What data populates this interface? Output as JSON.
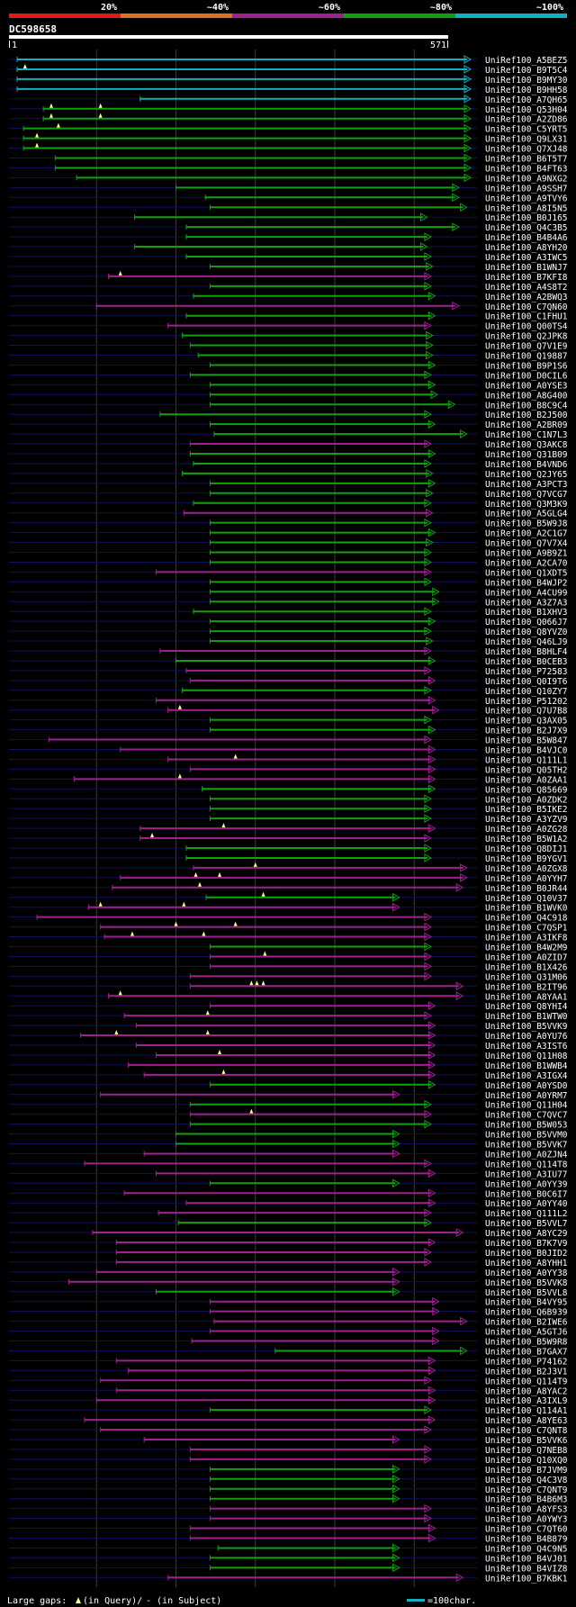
{
  "chart_data": {
    "type": "alignment-overview",
    "title": "DC598658",
    "query_length": 571,
    "axis_start_label": "1",
    "axis_end_label": "571",
    "identity_legend": [
      {
        "label": "20%",
        "color": "#e0191b"
      },
      {
        "label": "~40%",
        "color": "#e07020"
      },
      {
        "label": "~60%",
        "color": "#a02090"
      },
      {
        "label": "~80%",
        "color": "#10a010"
      },
      {
        "label": "~100%",
        "color": "#10b0c0"
      }
    ],
    "footer": {
      "gaps_label": "Large gaps:",
      "query_gap_note": "(in Query)/",
      "subject_gap_note": "- (in Subject)",
      "scale_note": "=100char."
    },
    "hits": [
      [
        "UniRef100_A5BEZ5",
        "c",
        0,
        570,
        []
      ],
      [
        "UniRef100_B9T5C4",
        "c",
        0,
        570,
        [
          10
        ]
      ],
      [
        "UniRef100_B9MY30",
        "c",
        0,
        570,
        []
      ],
      [
        "UniRef100_B9HH58",
        "c",
        0,
        570,
        []
      ],
      [
        "UniRef100_A7QH65",
        "c",
        155,
        570,
        []
      ],
      [
        "UniRef100_Q53H04",
        "g",
        33,
        570,
        [
          43,
          105
        ]
      ],
      [
        "UniRef100_A2ZD86",
        "g",
        33,
        570,
        [
          43,
          105
        ]
      ],
      [
        "UniRef100_C5YRT5",
        "g",
        8,
        570,
        [
          52
        ]
      ],
      [
        "UniRef100_Q9LX31",
        "g",
        8,
        570,
        [
          25
        ]
      ],
      [
        "UniRef100_Q7XJ48",
        "g",
        8,
        570,
        [
          25
        ]
      ],
      [
        "UniRef100_B6T5T7",
        "g",
        48,
        570,
        []
      ],
      [
        "UniRef100_B4FT63",
        "g",
        48,
        570,
        []
      ],
      [
        "UniRef100_A9NXG2",
        "g",
        75,
        570,
        []
      ],
      [
        "UniRef100_A9SSH7",
        "g",
        200,
        555,
        []
      ],
      [
        "UniRef100_A9TVY6",
        "g",
        237,
        555,
        []
      ],
      [
        "UniRef100_A8I5N5",
        "g",
        243,
        565,
        []
      ],
      [
        "UniRef100_B0J165",
        "g",
        148,
        515,
        []
      ],
      [
        "UniRef100_Q4C3B5",
        "g",
        213,
        555,
        []
      ],
      [
        "UniRef100_B4B4A6",
        "g",
        213,
        520,
        []
      ],
      [
        "UniRef100_A8YH20",
        "g",
        148,
        515,
        []
      ],
      [
        "UniRef100_A3IWC5",
        "g",
        213,
        520,
        []
      ],
      [
        "UniRef100_B1WNJ7",
        "g",
        243,
        522,
        []
      ],
      [
        "UniRef100_B7KFI8",
        "m",
        115,
        520,
        [
          130
        ]
      ],
      [
        "UniRef100_A4S8T2",
        "g",
        243,
        520,
        []
      ],
      [
        "UniRef100_A2BWQ3",
        "g",
        222,
        525,
        []
      ],
      [
        "UniRef100_C7QN60",
        "m",
        100,
        555,
        []
      ],
      [
        "UniRef100_C1FHU1",
        "g",
        213,
        525,
        []
      ],
      [
        "UniRef100_Q00TS4",
        "m",
        190,
        520,
        []
      ],
      [
        "UniRef100_Q2JPK8",
        "g",
        208,
        522,
        []
      ],
      [
        "UniRef100_Q7V1E9",
        "g",
        218,
        522,
        []
      ],
      [
        "UniRef100_Q19887",
        "g",
        228,
        522,
        []
      ],
      [
        "UniRef100_B9P1S6",
        "g",
        243,
        525,
        []
      ],
      [
        "UniRef100_D0CIL6",
        "g",
        218,
        520,
        []
      ],
      [
        "UniRef100_A0YSE3",
        "g",
        243,
        525,
        []
      ],
      [
        "UniRef100_A8G400",
        "g",
        243,
        528,
        []
      ],
      [
        "UniRef100_B8C9C4",
        "g",
        243,
        550,
        []
      ],
      [
        "UniRef100_B2J500",
        "g",
        180,
        520,
        []
      ],
      [
        "UniRef100_A2BR09",
        "g",
        243,
        525,
        []
      ],
      [
        "UniRef100_C1N7L3",
        "g",
        248,
        565,
        []
      ],
      [
        "UniRef100_Q3AKC8",
        "m",
        218,
        520,
        []
      ],
      [
        "UniRef100_Q31B09",
        "g",
        218,
        525,
        []
      ],
      [
        "UniRef100_B4VND6",
        "g",
        222,
        520,
        []
      ],
      [
        "UniRef100_Q2JY65",
        "g",
        208,
        522,
        []
      ],
      [
        "UniRef100_A3PCT3",
        "g",
        243,
        525,
        []
      ],
      [
        "UniRef100_Q7VCG7",
        "g",
        243,
        522,
        []
      ],
      [
        "UniRef100_Q3M3K9",
        "g",
        222,
        520,
        []
      ],
      [
        "UniRef100_A5GLG4",
        "m",
        210,
        522,
        []
      ],
      [
        "UniRef100_B5W9J8",
        "g",
        243,
        520,
        []
      ],
      [
        "UniRef100_A2C1G7",
        "g",
        243,
        525,
        []
      ],
      [
        "UniRef100_Q7V7X4",
        "g",
        243,
        522,
        []
      ],
      [
        "UniRef100_A9B9Z1",
        "g",
        243,
        520,
        []
      ],
      [
        "UniRef100_A2CA70",
        "g",
        243,
        520,
        []
      ],
      [
        "UniRef100_Q1XDT5",
        "m",
        175,
        520,
        []
      ],
      [
        "UniRef100_B4WJP2",
        "g",
        243,
        520,
        []
      ],
      [
        "UniRef100_A4CU99",
        "g",
        243,
        530,
        []
      ],
      [
        "UniRef100_A3Z7A3",
        "g",
        243,
        530,
        []
      ],
      [
        "UniRef100_B1XHV3",
        "g",
        222,
        520,
        []
      ],
      [
        "UniRef100_Q066J7",
        "g",
        243,
        525,
        []
      ],
      [
        "UniRef100_Q8YVZ0",
        "g",
        243,
        520,
        []
      ],
      [
        "UniRef100_Q46LJ9",
        "g",
        243,
        522,
        []
      ],
      [
        "UniRef100_B8HLF4",
        "m",
        180,
        520,
        []
      ],
      [
        "UniRef100_B0CEB3",
        "g",
        200,
        525,
        []
      ],
      [
        "UniRef100_P72583",
        "m",
        213,
        520,
        []
      ],
      [
        "UniRef100_Q0I9T6",
        "m",
        218,
        525,
        []
      ],
      [
        "UniRef100_Q10ZY7",
        "g",
        208,
        520,
        []
      ],
      [
        "UniRef100_P51202",
        "m",
        175,
        525,
        []
      ],
      [
        "UniRef100_Q7U7B8",
        "m",
        190,
        530,
        [
          205
        ]
      ],
      [
        "UniRef100_Q3AX05",
        "g",
        243,
        520,
        []
      ],
      [
        "UniRef100_B2J7X9",
        "g",
        243,
        525,
        []
      ],
      [
        "UniRef100_B5W847",
        "m",
        40,
        520,
        []
      ],
      [
        "UniRef100_B4VJC0",
        "m",
        130,
        525,
        []
      ],
      [
        "UniRef100_Q111L1",
        "m",
        190,
        525,
        [
          275
        ]
      ],
      [
        "UniRef100_Q05TH2",
        "m",
        218,
        525,
        []
      ],
      [
        "UniRef100_A0ZAA1",
        "m",
        72,
        525,
        [
          205
        ]
      ],
      [
        "UniRef100_Q85669",
        "g",
        233,
        525,
        []
      ],
      [
        "UniRef100_A0ZDK2",
        "g",
        243,
        520,
        []
      ],
      [
        "UniRef100_B5IKE2",
        "g",
        243,
        520,
        []
      ],
      [
        "UniRef100_A3YZV9",
        "g",
        243,
        520,
        []
      ],
      [
        "UniRef100_A0ZG28",
        "m",
        155,
        525,
        [
          260
        ]
      ],
      [
        "UniRef100_B5W1A2",
        "m",
        155,
        520,
        [
          170
        ]
      ],
      [
        "UniRef100_Q8DIJ1",
        "g",
        213,
        520,
        []
      ],
      [
        "UniRef100_B9YGV1",
        "g",
        213,
        520,
        []
      ],
      [
        "UniRef100_A0ZGX8",
        "m",
        222,
        565,
        [
          300
        ]
      ],
      [
        "UniRef100_A0YYH7",
        "m",
        130,
        565,
        [
          225,
          255
        ]
      ],
      [
        "UniRef100_B0JR44",
        "m",
        120,
        560,
        [
          230
        ]
      ],
      [
        "UniRef100_Q10V37",
        "g",
        238,
        480,
        [
          310
        ]
      ],
      [
        "UniRef100_B1WVK0",
        "m",
        90,
        480,
        [
          105,
          210
        ]
      ],
      [
        "UniRef100_Q4C918",
        "m",
        25,
        520,
        []
      ],
      [
        "UniRef100_C7QSP1",
        "m",
        105,
        520,
        [
          200,
          275
        ]
      ],
      [
        "UniRef100_A3IKF8",
        "m",
        110,
        520,
        [
          145,
          235
        ]
      ],
      [
        "UniRef100_B4W2M9",
        "g",
        243,
        520,
        []
      ],
      [
        "UniRef100_A0ZID7",
        "m",
        243,
        520,
        [
          312
        ]
      ],
      [
        "UniRef100_B1X426",
        "m",
        243,
        520,
        []
      ],
      [
        "UniRef100_Q31M06",
        "m",
        218,
        520,
        []
      ],
      [
        "UniRef100_B2IT96",
        "m",
        218,
        560,
        [
          295,
          302,
          310
        ]
      ],
      [
        "UniRef100_A8YAA1",
        "m",
        115,
        560,
        [
          130
        ]
      ],
      [
        "UniRef100_Q8YHI4",
        "m",
        243,
        525,
        []
      ],
      [
        "UniRef100_B1WTW0",
        "m",
        135,
        520,
        [
          240
        ]
      ],
      [
        "UniRef100_B5VVK9",
        "m",
        150,
        525,
        []
      ],
      [
        "UniRef100_A0YU76",
        "m",
        80,
        525,
        [
          125,
          240
        ]
      ],
      [
        "UniRef100_A3IST6",
        "m",
        150,
        525,
        []
      ],
      [
        "UniRef100_Q11H08",
        "m",
        175,
        525,
        [
          255
        ]
      ],
      [
        "UniRef100_B1WWB4",
        "m",
        140,
        525,
        []
      ],
      [
        "UniRef100_A3IGX4",
        "m",
        160,
        525,
        [
          260
        ]
      ],
      [
        "UniRef100_A0YSD0",
        "g",
        243,
        525,
        []
      ],
      [
        "UniRef100_A0YRM7",
        "m",
        105,
        480,
        []
      ],
      [
        "UniRef100_Q11H04",
        "g",
        218,
        520,
        []
      ],
      [
        "UniRef100_C7QVC7",
        "m",
        218,
        520,
        [
          295
        ]
      ],
      [
        "UniRef100_B5W053",
        "g",
        218,
        520,
        []
      ],
      [
        "UniRef100_B5VVM0",
        "g",
        200,
        480,
        []
      ],
      [
        "UniRef100_B5VVK7",
        "g",
        200,
        480,
        []
      ],
      [
        "UniRef100_A0ZJN4",
        "m",
        160,
        480,
        []
      ],
      [
        "UniRef100_Q114T8",
        "m",
        85,
        520,
        []
      ],
      [
        "UniRef100_A3IU77",
        "m",
        175,
        525,
        []
      ],
      [
        "UniRef100_A0YY39",
        "g",
        243,
        480,
        []
      ],
      [
        "UniRef100_B0C6I7",
        "m",
        135,
        525,
        []
      ],
      [
        "UniRef100_A0YY40",
        "m",
        213,
        525,
        []
      ],
      [
        "UniRef100_Q111L2",
        "m",
        178,
        520,
        []
      ],
      [
        "UniRef100_B5VVL7",
        "g",
        203,
        520,
        []
      ],
      [
        "UniRef100_A8YC29",
        "m",
        95,
        560,
        []
      ],
      [
        "UniRef100_B7K7V9",
        "m",
        125,
        525,
        []
      ],
      [
        "UniRef100_B0JID2",
        "m",
        125,
        520,
        []
      ],
      [
        "UniRef100_A8YHH1",
        "m",
        125,
        520,
        []
      ],
      [
        "UniRef100_A0YY38",
        "m",
        100,
        480,
        []
      ],
      [
        "UniRef100_B5VVK8",
        "m",
        65,
        480,
        []
      ],
      [
        "UniRef100_B5VVL8",
        "g",
        175,
        480,
        []
      ],
      [
        "UniRef100_B4VY95",
        "m",
        243,
        530,
        []
      ],
      [
        "UniRef100_Q6B939",
        "m",
        243,
        530,
        []
      ],
      [
        "UniRef100_B2IWE6",
        "m",
        248,
        565,
        []
      ],
      [
        "UniRef100_A5GTJ6",
        "m",
        243,
        530,
        []
      ],
      [
        "UniRef100_B5W9R8",
        "m",
        220,
        530,
        []
      ],
      [
        "UniRef100_B7GAX7",
        "g",
        325,
        565,
        []
      ],
      [
        "UniRef100_P74162",
        "m",
        125,
        525,
        []
      ],
      [
        "UniRef100_B2J3V1",
        "m",
        140,
        525,
        []
      ],
      [
        "UniRef100_Q114T9",
        "m",
        105,
        520,
        []
      ],
      [
        "UniRef100_A8YAC2",
        "m",
        125,
        525,
        []
      ],
      [
        "UniRef100_A3IXL9",
        "m",
        100,
        525,
        []
      ],
      [
        "UniRef100_Q114A1",
        "g",
        243,
        520,
        []
      ],
      [
        "UniRef100_A8YE63",
        "m",
        85,
        525,
        []
      ],
      [
        "UniRef100_C7QNT8",
        "m",
        105,
        520,
        []
      ],
      [
        "UniRef100_B5VVK6",
        "m",
        160,
        480,
        []
      ],
      [
        "UniRef100_Q7NEB8",
        "m",
        218,
        520,
        []
      ],
      [
        "UniRef100_Q10XQ0",
        "m",
        218,
        520,
        []
      ],
      [
        "UniRef100_B7JVM9",
        "g",
        243,
        480,
        []
      ],
      [
        "UniRef100_Q4C3V8",
        "g",
        243,
        480,
        []
      ],
      [
        "UniRef100_C7QNT9",
        "g",
        243,
        480,
        []
      ],
      [
        "UniRef100_B4B6M3",
        "g",
        243,
        480,
        []
      ],
      [
        "UniRef100_A8YFS3",
        "m",
        243,
        520,
        []
      ],
      [
        "UniRef100_A0YWY3",
        "m",
        243,
        520,
        []
      ],
      [
        "UniRef100_C7QT60",
        "m",
        218,
        525,
        []
      ],
      [
        "UniRef100_B4B879",
        "m",
        218,
        525,
        []
      ],
      [
        "UniRef100_Q4C9N5",
        "g",
        253,
        480,
        []
      ],
      [
        "UniRef100_B4VJ01",
        "g",
        243,
        480,
        []
      ],
      [
        "UniRef100_B4VIZ8",
        "g",
        243,
        480,
        []
      ],
      [
        "UniRef100_B7KBK1",
        "m",
        190,
        560,
        []
      ]
    ]
  }
}
